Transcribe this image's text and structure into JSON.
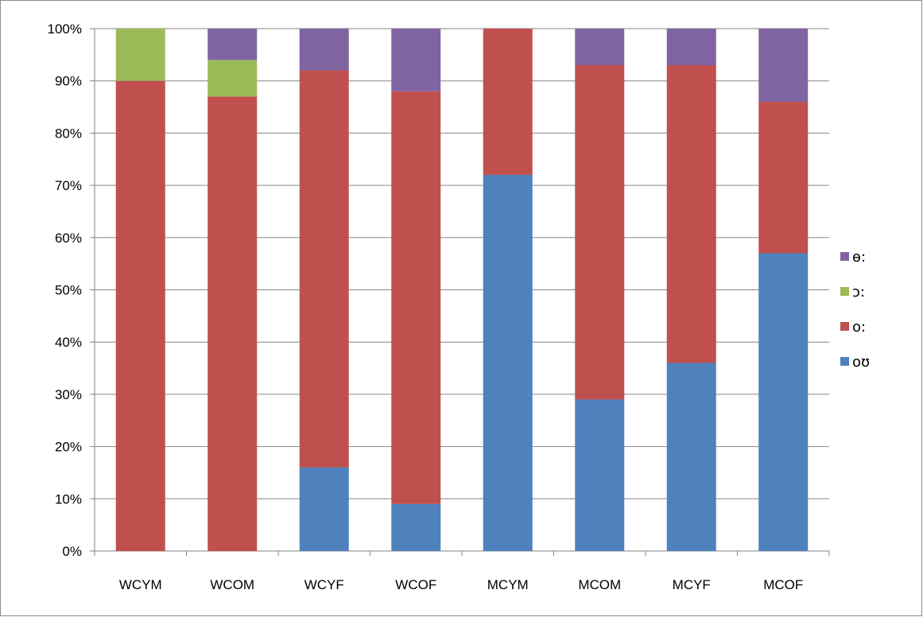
{
  "chart_data": {
    "type": "bar",
    "stacked": true,
    "categories": [
      "WCYM",
      "WCOM",
      "WCYF",
      "WCOF",
      "MCYM",
      "MCOM",
      "MCYF",
      "MCOF"
    ],
    "series": [
      {
        "name": "oʊ",
        "color": "#4f81bd",
        "values": [
          0,
          0,
          16,
          9,
          72,
          29,
          36,
          57
        ]
      },
      {
        "name": "o:",
        "color": "#c0504d",
        "values": [
          90,
          87,
          76,
          79,
          28,
          64,
          57,
          29
        ]
      },
      {
        "name": "ɔ:",
        "color": "#9bbb59",
        "values": [
          10,
          7,
          0,
          0,
          0,
          0,
          0,
          0
        ]
      },
      {
        "name": "ɵ:",
        "color": "#8064a2",
        "values": [
          0,
          6,
          8,
          12,
          0,
          7,
          7,
          14
        ]
      }
    ],
    "y_ticks": [
      "0%",
      "10%",
      "20%",
      "30%",
      "40%",
      "50%",
      "60%",
      "70%",
      "80%",
      "90%",
      "100%"
    ],
    "ylim": [
      0,
      100
    ],
    "grid": true,
    "legend_position": "right",
    "title": "",
    "xlabel": "",
    "ylabel": ""
  }
}
